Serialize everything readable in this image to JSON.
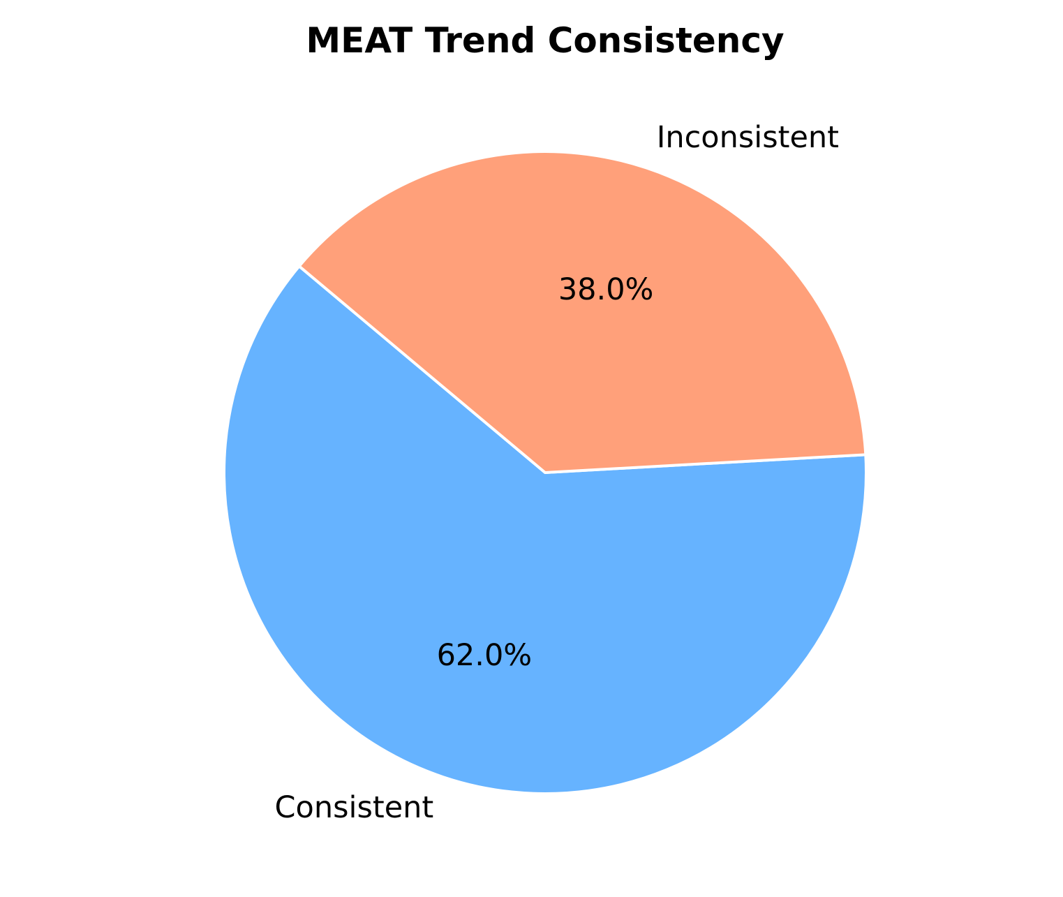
{
  "chart_data": {
    "type": "pie",
    "title": "MEAT Trend Consistency",
    "slices": [
      {
        "label": "Consistent",
        "value": 62.0,
        "pct_label": "62.0%",
        "color": "#66b3ff"
      },
      {
        "label": "Inconsistent",
        "value": 38.0,
        "pct_label": "38.0%",
        "color": "#ffa07a"
      }
    ],
    "edge_color": "#ffffff"
  }
}
